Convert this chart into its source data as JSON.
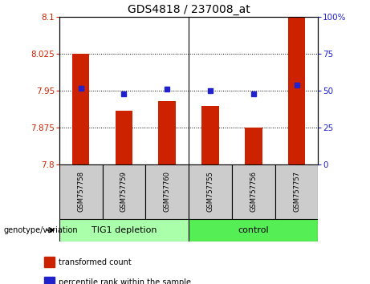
{
  "title": "GDS4818 / 237008_at",
  "samples": [
    "GSM757758",
    "GSM757759",
    "GSM757760",
    "GSM757755",
    "GSM757756",
    "GSM757757"
  ],
  "bar_values": [
    8.025,
    7.91,
    7.93,
    7.92,
    7.875,
    8.1
  ],
  "percentile_values": [
    52,
    48,
    51,
    50,
    48,
    54
  ],
  "bar_color": "#cc2200",
  "percentile_color": "#2222cc",
  "ylim_left": [
    7.8,
    8.1
  ],
  "ylim_right": [
    0,
    100
  ],
  "yticks_left": [
    7.8,
    7.875,
    7.95,
    8.025,
    8.1
  ],
  "ytick_labels_left": [
    "7.8",
    "7.875",
    "7.95",
    "8.025",
    "8.1"
  ],
  "yticks_right": [
    0,
    25,
    50,
    75,
    100
  ],
  "ytick_labels_right": [
    "0",
    "25",
    "50",
    "75",
    "100%"
  ],
  "groups": [
    {
      "label": "TIG1 depletion",
      "indices": [
        0,
        1,
        2
      ],
      "color": "#aaffaa"
    },
    {
      "label": "control",
      "indices": [
        3,
        4,
        5
      ],
      "color": "#55ee55"
    }
  ],
  "group_label": "genotype/variation",
  "legend_items": [
    {
      "label": "transformed count",
      "color": "#cc2200"
    },
    {
      "label": "percentile rank within the sample",
      "color": "#2222cc"
    }
  ],
  "bar_width": 0.4,
  "tick_label_fontsize": 7.5,
  "title_fontsize": 10,
  "sample_label_fontsize": 6,
  "group_label_fontsize": 8,
  "legend_fontsize": 7
}
